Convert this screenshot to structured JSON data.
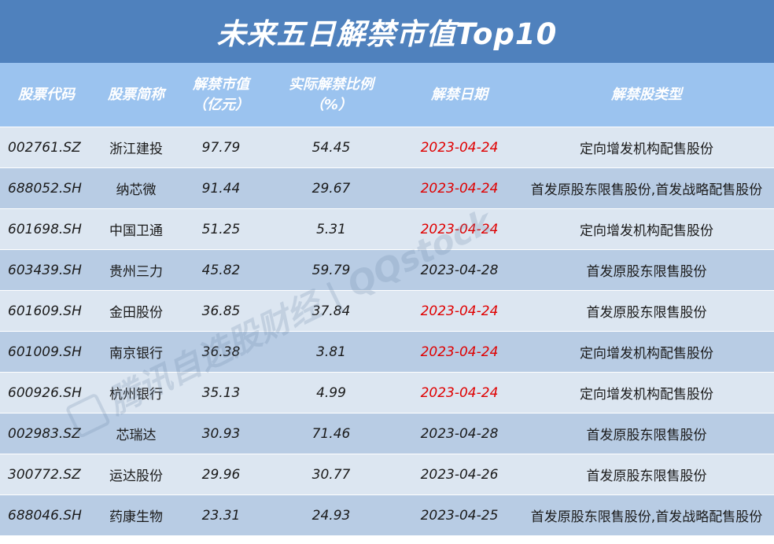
{
  "title": "未来五日解禁市值Top10",
  "headers": [
    {
      "line1": "股票代码",
      "line2": ""
    },
    {
      "line1": "股票简称",
      "line2": ""
    },
    {
      "line1": "解禁市值",
      "line2": "（亿元）"
    },
    {
      "line1": "实际解禁比例",
      "line2": "（%）"
    },
    {
      "line1": "解禁日期",
      "line2": ""
    },
    {
      "line1": "解禁股类型",
      "line2": ""
    }
  ],
  "rows": [
    {
      "code": "002761.SZ",
      "name": "浙江建投",
      "value": "97.79",
      "ratio": "54.45",
      "date": "2023-04-24",
      "date_red": true,
      "type": "定向增发机构配售股份"
    },
    {
      "code": "688052.SH",
      "name": "纳芯微",
      "value": "91.44",
      "ratio": "29.67",
      "date": "2023-04-24",
      "date_red": true,
      "type": "首发原股东限售股份,首发战略配售股份"
    },
    {
      "code": "601698.SH",
      "name": "中国卫通",
      "value": "51.25",
      "ratio": "5.31",
      "date": "2023-04-24",
      "date_red": true,
      "type": "定向增发机构配售股份"
    },
    {
      "code": "603439.SH",
      "name": "贵州三力",
      "value": "45.82",
      "ratio": "59.79",
      "date": "2023-04-28",
      "date_red": false,
      "type": "首发原股东限售股份"
    },
    {
      "code": "601609.SH",
      "name": "金田股份",
      "value": "36.85",
      "ratio": "37.84",
      "date": "2023-04-24",
      "date_red": true,
      "type": "首发原股东限售股份"
    },
    {
      "code": "601009.SH",
      "name": "南京银行",
      "value": "36.38",
      "ratio": "3.81",
      "date": "2023-04-24",
      "date_red": true,
      "type": "定向增发机构配售股份"
    },
    {
      "code": "600926.SH",
      "name": "杭州银行",
      "value": "35.13",
      "ratio": "4.99",
      "date": "2023-04-24",
      "date_red": true,
      "type": "定向增发机构配售股份"
    },
    {
      "code": "002983.SZ",
      "name": "芯瑞达",
      "value": "30.93",
      "ratio": "71.46",
      "date": "2023-04-28",
      "date_red": false,
      "type": "首发原股东限售股份"
    },
    {
      "code": "300772.SZ",
      "name": "运达股份",
      "value": "29.96",
      "ratio": "30.77",
      "date": "2023-04-26",
      "date_red": false,
      "type": "首发原股东限售股份"
    },
    {
      "code": "688046.SH",
      "name": "药康生物",
      "value": "23.31",
      "ratio": "24.93",
      "date": "2023-04-25",
      "date_red": false,
      "type": "首发原股东限售股份,首发战略配售股份"
    }
  ],
  "watermark": "腾讯自选股财经 | QQstock",
  "colors": {
    "title_bg": "#4f81bd",
    "header_bg": "#9bc3ef",
    "row_odd": "#dce6f1",
    "row_even": "#b8cce4",
    "date_red": "#e00000"
  }
}
